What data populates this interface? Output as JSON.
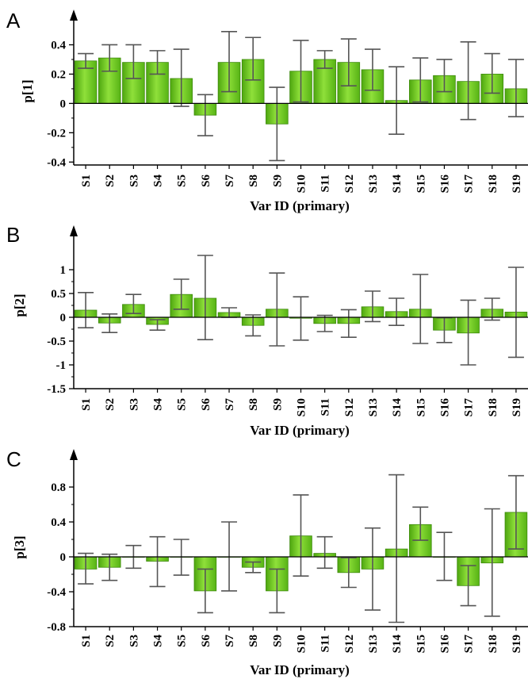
{
  "chart_data": [
    {
      "type": "bar",
      "panel": "A",
      "ylabel": "p[1]",
      "xlabel": "Var ID (primary)",
      "categories": [
        "S1",
        "S2",
        "S3",
        "S4",
        "S5",
        "S6",
        "S7",
        "S8",
        "S9",
        "S10",
        "S11",
        "S12",
        "S13",
        "S14",
        "S15",
        "S16",
        "S17",
        "S18",
        "S19"
      ],
      "values": [
        0.29,
        0.31,
        0.28,
        0.28,
        0.17,
        -0.08,
        0.28,
        0.3,
        -0.14,
        0.22,
        0.3,
        0.28,
        0.23,
        0.02,
        0.16,
        0.19,
        0.15,
        0.2,
        0.1
      ],
      "err_low": [
        0.24,
        0.22,
        0.17,
        0.2,
        -0.02,
        -0.22,
        0.08,
        0.16,
        -0.39,
        0.01,
        0.24,
        0.12,
        0.09,
        -0.21,
        0.01,
        0.08,
        -0.11,
        0.07,
        -0.09
      ],
      "err_high": [
        0.34,
        0.4,
        0.4,
        0.36,
        0.37,
        0.06,
        0.49,
        0.45,
        0.11,
        0.43,
        0.36,
        0.44,
        0.37,
        0.25,
        0.31,
        0.3,
        0.42,
        0.34,
        0.3
      ],
      "ylim": [
        -0.42,
        0.5
      ],
      "yticks": [
        -0.4,
        -0.2,
        0,
        0.2,
        0.4
      ],
      "ytick_labels": [
        "-0.4",
        "-0.2",
        "0",
        "0.2",
        "0.4"
      ],
      "grid": false,
      "bar_color": "#6ccc1e"
    },
    {
      "type": "bar",
      "panel": "B",
      "ylabel": "p[2]",
      "xlabel": "Var ID (primary)",
      "categories": [
        "S1",
        "S2",
        "S3",
        "S4",
        "S5",
        "S6",
        "S7",
        "S8",
        "S9",
        "S10",
        "S11",
        "S12",
        "S13",
        "S14",
        "S15",
        "S16",
        "S17",
        "S18",
        "S19"
      ],
      "values": [
        0.15,
        -0.12,
        0.27,
        -0.15,
        0.48,
        0.4,
        0.1,
        -0.17,
        0.17,
        -0.02,
        -0.13,
        -0.13,
        0.22,
        0.12,
        0.17,
        -0.27,
        -0.33,
        0.17,
        0.11
      ],
      "err_low": [
        -0.22,
        -0.32,
        0.08,
        -0.27,
        0.17,
        -0.47,
        0.0,
        -0.39,
        -0.6,
        -0.48,
        -0.3,
        -0.42,
        -0.09,
        -0.17,
        -0.55,
        -0.53,
        -1.0,
        -0.06,
        -0.84
      ],
      "err_high": [
        0.52,
        0.07,
        0.48,
        -0.05,
        0.8,
        1.3,
        0.2,
        0.05,
        0.93,
        0.43,
        0.04,
        0.16,
        0.55,
        0.4,
        0.9,
        -0.01,
        0.36,
        0.4,
        1.05
      ],
      "ylim": [
        -1.5,
        1.5
      ],
      "yticks": [
        -1.5,
        -1,
        -0.5,
        0,
        0.5,
        1
      ],
      "ytick_labels": [
        "-1.5",
        "-1",
        "-0.5",
        "0",
        "0.5",
        "1"
      ],
      "grid": false,
      "bar_color": "#6ccc1e"
    },
    {
      "type": "bar",
      "panel": "C",
      "ylabel": "p[3]",
      "xlabel": "Var ID (primary)",
      "categories": [
        "S1",
        "S2",
        "S3",
        "S4",
        "S5",
        "S6",
        "S7",
        "S8",
        "S9",
        "S10",
        "S11",
        "S12",
        "S13",
        "S14",
        "S15",
        "S16",
        "S17",
        "S18",
        "S19"
      ],
      "values": [
        -0.14,
        -0.12,
        0.0,
        -0.05,
        0.0,
        -0.39,
        0.0,
        -0.12,
        -0.39,
        0.24,
        0.04,
        -0.18,
        -0.14,
        0.09,
        0.37,
        0.0,
        -0.33,
        -0.07,
        0.51
      ],
      "err_low": [
        -0.31,
        -0.27,
        -0.13,
        -0.34,
        -0.21,
        -0.64,
        -0.39,
        -0.18,
        -0.64,
        -0.22,
        -0.13,
        -0.35,
        -0.61,
        -0.75,
        0.19,
        -0.27,
        -0.56,
        -0.68,
        0.09
      ],
      "err_high": [
        0.04,
        0.03,
        0.13,
        0.23,
        0.2,
        -0.14,
        0.4,
        -0.06,
        -0.14,
        0.71,
        0.23,
        -0.01,
        0.33,
        0.94,
        0.57,
        0.28,
        -0.1,
        0.55,
        0.93
      ],
      "ylim": [
        -0.8,
        1.0
      ],
      "yticks": [
        -0.8,
        -0.4,
        0,
        0.4,
        0.8
      ],
      "ytick_labels": [
        "-0.8",
        "-0.4",
        "0",
        "0.4",
        "0.8"
      ],
      "grid": false,
      "bar_color": "#6ccc1e"
    }
  ]
}
